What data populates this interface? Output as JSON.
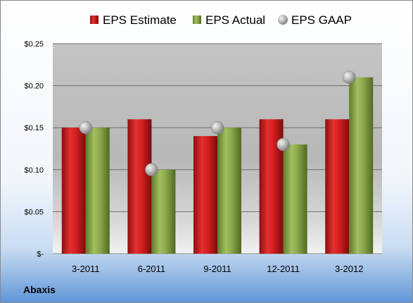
{
  "company": "Abaxis",
  "colors": {
    "estimate": "#d01c1c",
    "actual": "#8aa74a",
    "gaap": "#b0b0b0"
  },
  "chart_data": {
    "type": "bar",
    "categories": [
      "3-2011",
      "6-2011",
      "9-2011",
      "12-2011",
      "3-2012"
    ],
    "series": [
      {
        "name": "EPS Estimate",
        "kind": "bar",
        "values": [
          0.15,
          0.16,
          0.14,
          0.16,
          0.16
        ]
      },
      {
        "name": "EPS Actual",
        "kind": "bar",
        "values": [
          0.15,
          0.1,
          0.15,
          0.13,
          0.21
        ]
      },
      {
        "name": "EPS GAAP",
        "kind": "marker",
        "values": [
          0.15,
          0.1,
          0.15,
          0.13,
          0.21
        ]
      }
    ],
    "ylim": [
      0,
      0.25
    ],
    "yticks": [
      0,
      0.05,
      0.1,
      0.15,
      0.2,
      0.25
    ],
    "ytick_labels": [
      "$-",
      "$0.05",
      "$0.10",
      "$0.15",
      "$0.20",
      "$0.25"
    ],
    "grid": true,
    "legend_position": "top"
  }
}
